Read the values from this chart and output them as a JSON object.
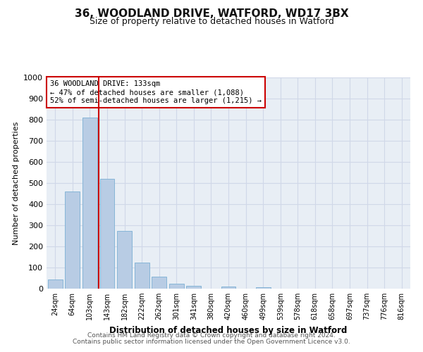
{
  "title": "36, WOODLAND DRIVE, WATFORD, WD17 3BX",
  "subtitle": "Size of property relative to detached houses in Watford",
  "xlabel": "Distribution of detached houses by size in Watford",
  "ylabel": "Number of detached properties",
  "bar_labels": [
    "24sqm",
    "64sqm",
    "103sqm",
    "143sqm",
    "182sqm",
    "222sqm",
    "262sqm",
    "301sqm",
    "341sqm",
    "380sqm",
    "420sqm",
    "460sqm",
    "499sqm",
    "539sqm",
    "578sqm",
    "618sqm",
    "658sqm",
    "697sqm",
    "737sqm",
    "776sqm",
    "816sqm"
  ],
  "bar_heights": [
    45,
    460,
    810,
    520,
    275,
    125,
    57,
    23,
    13,
    0,
    10,
    0,
    8,
    0,
    0,
    0,
    0,
    0,
    0,
    0,
    0
  ],
  "bar_color": "#b8cce4",
  "bar_edgecolor": "#7bafd4",
  "grid_color": "#d0d8e8",
  "background_color": "#e8eef5",
  "vline_color": "#cc0000",
  "annotation_line1": "36 WOODLAND DRIVE: 133sqm",
  "annotation_line2": "← 47% of detached houses are smaller (1,088)",
  "annotation_line3": "52% of semi-detached houses are larger (1,215) →",
  "annotation_box_edgecolor": "#cc0000",
  "ylim": [
    0,
    1000
  ],
  "yticks": [
    0,
    100,
    200,
    300,
    400,
    500,
    600,
    700,
    800,
    900,
    1000
  ],
  "footer_line1": "Contains HM Land Registry data © Crown copyright and database right 2024.",
  "footer_line2": "Contains public sector information licensed under the Open Government Licence v3.0."
}
